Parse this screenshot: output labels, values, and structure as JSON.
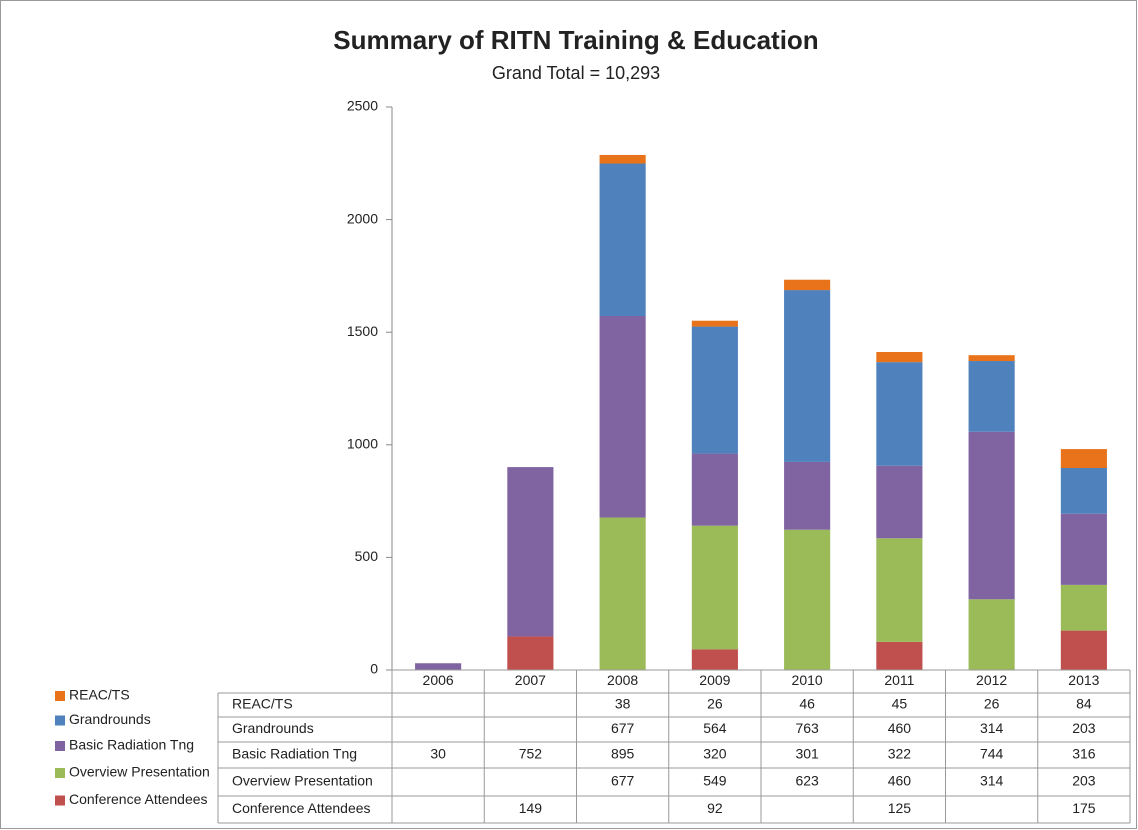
{
  "chart_data": {
    "type": "stacked_bar",
    "title": "Summary of RITN Training & Education",
    "subtitle": "Grand Total = 10,293",
    "categories": [
      "2006",
      "2007",
      "2008",
      "2009",
      "2010",
      "2011",
      "2012",
      "2013"
    ],
    "series": [
      {
        "name": "REAC/TS",
        "color": "#e8731a",
        "values": [
          null,
          null,
          38,
          26,
          46,
          45,
          26,
          84
        ]
      },
      {
        "name": "Grandrounds",
        "color": "#4f81bd",
        "values": [
          null,
          null,
          677,
          564,
          763,
          460,
          314,
          203
        ]
      },
      {
        "name": "Basic Radiation Tng",
        "color": "#8064a2",
        "values": [
          30,
          752,
          895,
          320,
          301,
          322,
          744,
          316
        ]
      },
      {
        "name": "Overview Presentation",
        "color": "#9bbb59",
        "values": [
          null,
          null,
          677,
          549,
          623,
          460,
          314,
          203
        ]
      },
      {
        "name": "Conference Attendees",
        "color": "#c0504d",
        "values": [
          null,
          149,
          null,
          92,
          null,
          125,
          null,
          175
        ]
      }
    ],
    "ylim": [
      0,
      2500
    ],
    "yticks": [
      0,
      500,
      1000,
      1500,
      2000,
      2500
    ],
    "grid": false,
    "data_table": true
  }
}
